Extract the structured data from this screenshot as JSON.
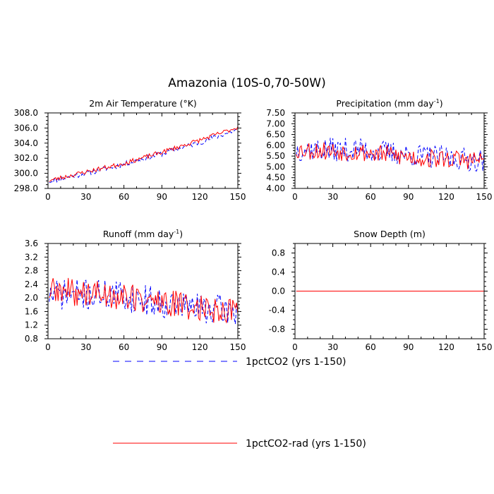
{
  "figure": {
    "title": "Amazonia (10S-0,70-50W)"
  },
  "legend": {
    "entries": [
      {
        "label": "1pctCO2 (yrs 1-150)",
        "color": "#0000ff",
        "style": "dashed"
      },
      {
        "label": "1pctCO2-rad (yrs 1-150)",
        "color": "#ff0000",
        "style": "solid"
      }
    ]
  },
  "chart_data": [
    {
      "type": "line",
      "title": "2m Air Temperature (°K)",
      "xlim": [
        0,
        150
      ],
      "ylim": [
        298.0,
        308.0
      ],
      "xticks": [
        0,
        30,
        60,
        90,
        120,
        150
      ],
      "yticks": [
        298.0,
        300.0,
        302.0,
        304.0,
        306.0,
        308.0
      ],
      "ytick_decimals": 1,
      "series": [
        {
          "name": "1pctCO2 (yrs 1-150)",
          "color": "#0000ff",
          "style": "dashed",
          "x_start": 1,
          "x_end": 150,
          "anchors": [
            [
              0,
              298.9
            ],
            [
              30,
              300.0
            ],
            [
              60,
              301.2
            ],
            [
              90,
              302.6
            ],
            [
              120,
              304.1
            ],
            [
              150,
              305.8
            ]
          ],
          "noise": 0.35,
          "seed": 11
        },
        {
          "name": "1pctCO2-rad (yrs 1-150)",
          "color": "#ff0000",
          "style": "solid",
          "x_start": 1,
          "x_end": 150,
          "anchors": [
            [
              0,
              299.0
            ],
            [
              30,
              300.2
            ],
            [
              60,
              301.3
            ],
            [
              90,
              302.8
            ],
            [
              120,
              304.4
            ],
            [
              150,
              306.1
            ]
          ],
          "noise": 0.3,
          "seed": 23
        }
      ]
    },
    {
      "type": "line",
      "title": "Precipitation (mm day",
      "title_sup": "-1",
      "title_end": ")",
      "xlim": [
        0,
        150
      ],
      "ylim": [
        4.0,
        7.5
      ],
      "xticks": [
        0,
        30,
        60,
        90,
        120,
        150
      ],
      "yticks": [
        4.0,
        4.5,
        5.0,
        5.5,
        6.0,
        6.5,
        7.0,
        7.5
      ],
      "ytick_decimals": 2,
      "series": [
        {
          "name": "1pctCO2 (yrs 1-150)",
          "color": "#0000ff",
          "style": "dashed",
          "x_start": 1,
          "x_end": 150,
          "anchors": [
            [
              0,
              5.8
            ],
            [
              50,
              5.8
            ],
            [
              100,
              5.5
            ],
            [
              150,
              5.3
            ]
          ],
          "noise": 0.55,
          "seed": 37
        },
        {
          "name": "1pctCO2-rad (yrs 1-150)",
          "color": "#ff0000",
          "style": "solid",
          "x_start": 1,
          "x_end": 150,
          "anchors": [
            [
              0,
              5.8
            ],
            [
              50,
              5.7
            ],
            [
              100,
              5.4
            ],
            [
              150,
              5.3
            ]
          ],
          "noise": 0.45,
          "seed": 53
        }
      ]
    },
    {
      "type": "line",
      "title": "Runoff (mm day",
      "title_sup": "-1",
      "title_end": ")",
      "xlim": [
        0,
        150
      ],
      "ylim": [
        0.8,
        3.6
      ],
      "xticks": [
        0,
        30,
        60,
        90,
        120,
        150
      ],
      "yticks": [
        0.8,
        1.2,
        1.6,
        2.0,
        2.4,
        2.8,
        3.2,
        3.6
      ],
      "ytick_decimals": 1,
      "series": [
        {
          "name": "1pctCO2 (yrs 1-150)",
          "color": "#0000ff",
          "style": "dashed",
          "x_start": 1,
          "x_end": 150,
          "anchors": [
            [
              0,
              2.1
            ],
            [
              50,
              2.1
            ],
            [
              100,
              1.8
            ],
            [
              150,
              1.6
            ]
          ],
          "noise": 0.45,
          "seed": 71
        },
        {
          "name": "1pctCO2-rad (yrs 1-150)",
          "color": "#ff0000",
          "style": "solid",
          "x_start": 1,
          "x_end": 150,
          "anchors": [
            [
              0,
              2.2
            ],
            [
              50,
              2.1
            ],
            [
              100,
              1.8
            ],
            [
              150,
              1.6
            ]
          ],
          "noise": 0.42,
          "seed": 89
        }
      ]
    },
    {
      "type": "line",
      "title": "Snow Depth (m)",
      "xlim": [
        0,
        150
      ],
      "ylim": [
        -1.0,
        1.0
      ],
      "xticks": [
        0,
        30,
        60,
        90,
        120,
        150
      ],
      "yticks": [
        -0.8,
        -0.4,
        0.0,
        0.4,
        0.8
      ],
      "ytick_decimals": 1,
      "series": [
        {
          "name": "1pctCO2 (yrs 1-150)",
          "color": "#0000ff",
          "style": "dashed",
          "x_start": 1,
          "x_end": 150,
          "anchors": [
            [
              0,
              0.0
            ],
            [
              150,
              0.0
            ]
          ],
          "noise": 0,
          "seed": 1
        },
        {
          "name": "1pctCO2-rad (yrs 1-150)",
          "color": "#ff0000",
          "style": "solid",
          "x_start": 1,
          "x_end": 150,
          "anchors": [
            [
              0,
              0.0
            ],
            [
              150,
              0.0
            ]
          ],
          "noise": 0,
          "seed": 2
        }
      ]
    }
  ]
}
